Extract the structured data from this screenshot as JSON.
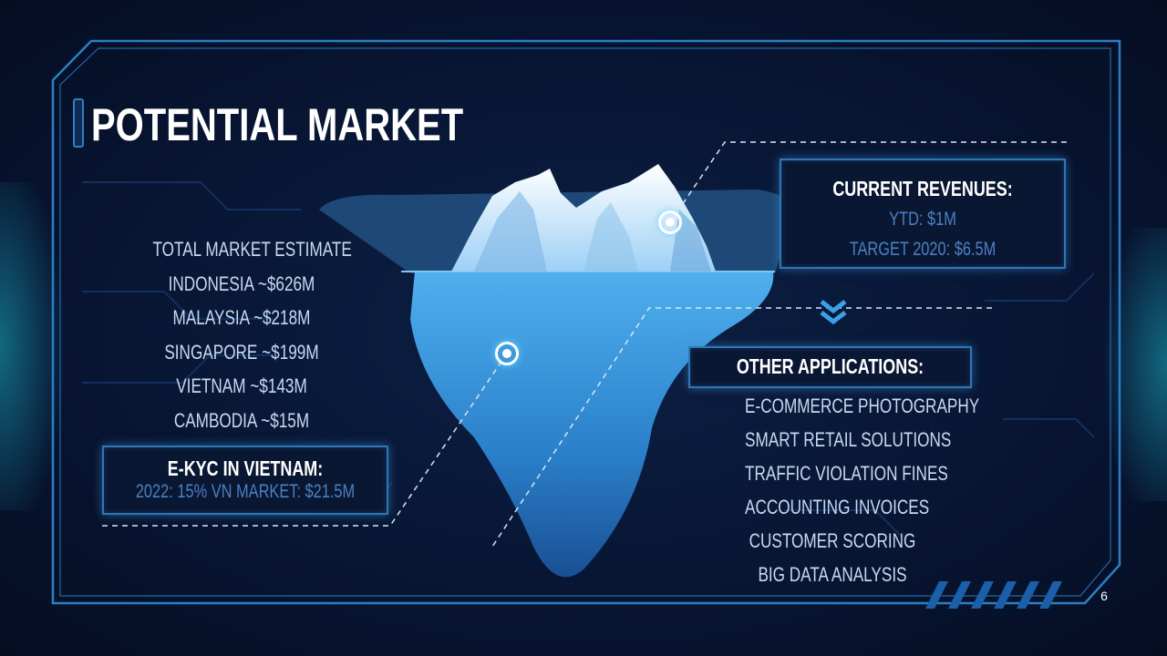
{
  "slide": {
    "title": "Potential Market",
    "page_number": "6"
  },
  "market": {
    "items": [
      "Total market estimate",
      "Indonesia ~$626M",
      "Malaysia ~$218M",
      "Singapore ~$199M",
      "Vietnam ~$143M",
      "Cambodia ~$15M"
    ]
  },
  "ekyc": {
    "heading": "E-KYC in Vietnam:",
    "detail": "2022: 15% VN market: $21.5M"
  },
  "revenue": {
    "heading": "Current revenues:",
    "ytd": "YTD: $1M",
    "target": "Target 2020: $6.5M"
  },
  "applications": {
    "heading": "Other Applications:",
    "items": [
      "E-commerce photography",
      "Smart retail solutions",
      "Traffic violation fines",
      "Accounting invoices",
      "Customer scoring",
      "Big data analysis"
    ]
  },
  "icons": [
    "pin-icon",
    "chevron-down-icon",
    "iceberg-illustration"
  ],
  "colors": {
    "background": "#081634",
    "frame": "#2a7fc4",
    "box_border": "#2e77b5",
    "accent_text": "#4a80c2",
    "iceberg_water": "#3a9ee0"
  }
}
